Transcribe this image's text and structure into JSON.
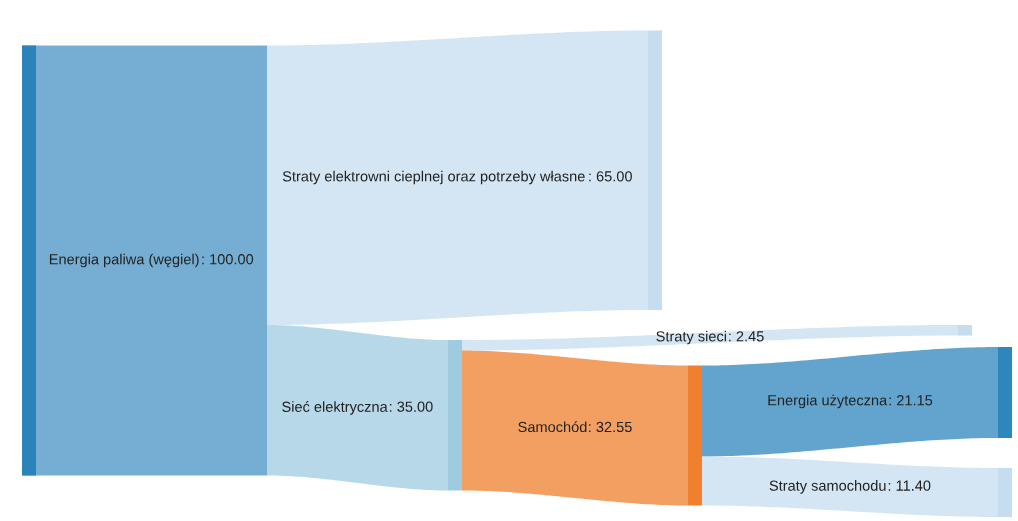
{
  "chart_data": {
    "type": "other",
    "categories": [
      "Energia paliwa (węgiel)",
      "Straty elektrowni cieplnej oraz potrzeby własne",
      "Sieć elektryczna",
      "Straty sieci",
      "Samochód",
      "Energia użyteczna",
      "Straty samochodu"
    ],
    "values": [
      100.0,
      65.0,
      35.0,
      2.45,
      32.55,
      21.15,
      11.4
    ],
    "value_labels": [
      ": 100.00",
      ": 65.00",
      ": 35.00",
      ": 2.45",
      ": 32.55",
      ": 21.15",
      ": 11.40"
    ],
    "colors": [
      "#2b83ba",
      "#c5ddef",
      "#9fcbe0",
      "#c5ddef",
      "#f07f2e",
      "#2f86bd",
      "#c5ddef"
    ]
  }
}
